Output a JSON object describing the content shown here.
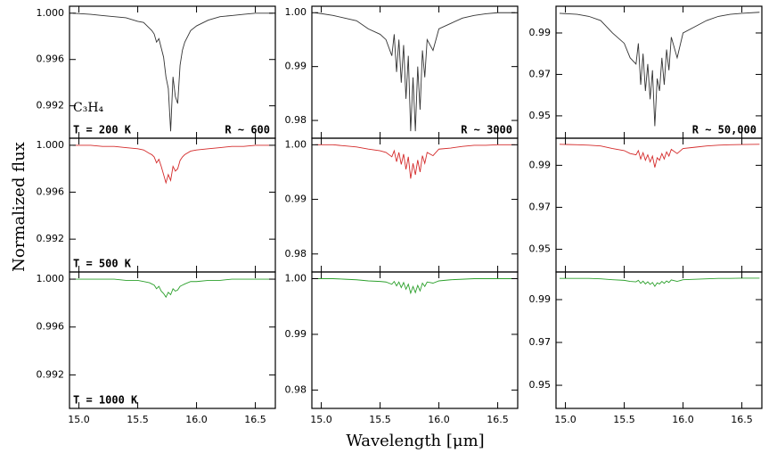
{
  "ylabel": "Normalized flux",
  "xlabel": "Wavelength [μm]",
  "chart_data": [
    {
      "type": "line",
      "species": "C₃H₄",
      "label": "T = 200 K",
      "resolution": "R ~ 600",
      "color": "#333333",
      "xlim": [
        14.92,
        16.67
      ],
      "xticks": [
        {
          "value": 15,
          "label": "15.0"
        },
        15.5,
        {
          "value": 16,
          "label": "16.0"
        },
        16.5
      ],
      "ylim": [
        0.9892,
        1.0006
      ],
      "yticks": [
        {
          "value": 1,
          "label": "1.000"
        },
        0.996,
        0.992
      ],
      "x": [
        14.95,
        15.1,
        15.2,
        15.3,
        15.4,
        15.5,
        15.55,
        15.6,
        15.62,
        15.64,
        15.66,
        15.68,
        15.7,
        15.72,
        15.74,
        15.76,
        15.78,
        15.8,
        15.82,
        15.84,
        15.86,
        15.88,
        15.9,
        15.95,
        16.0,
        16.1,
        16.2,
        16.3,
        16.4,
        16.5,
        16.65
      ],
      "values": [
        1.0,
        0.9999,
        0.9998,
        0.9997,
        0.9996,
        0.9993,
        0.9992,
        0.9987,
        0.9985,
        0.9982,
        0.9975,
        0.9978,
        0.997,
        0.9962,
        0.9945,
        0.9935,
        0.9898,
        0.9945,
        0.9928,
        0.9922,
        0.9955,
        0.9968,
        0.9975,
        0.9985,
        0.9989,
        0.9994,
        0.9997,
        0.9998,
        0.9999,
        1.0,
        1.0
      ]
    },
    {
      "type": "line",
      "resolution": "R ~ 3000",
      "color": "#333333",
      "xlim": [
        14.92,
        16.67
      ],
      "xticks": [
        {
          "value": 15,
          "label": "15.0"
        },
        15.5,
        {
          "value": 16,
          "label": "16.0"
        },
        16.5
      ],
      "ylim": [
        0.9767,
        1.0012
      ],
      "yticks": [
        {
          "value": 1,
          "label": "1.00"
        },
        0.99,
        0.98
      ],
      "x": [
        14.95,
        15.1,
        15.2,
        15.3,
        15.4,
        15.5,
        15.55,
        15.6,
        15.62,
        15.64,
        15.66,
        15.68,
        15.7,
        15.72,
        15.74,
        15.76,
        15.78,
        15.8,
        15.82,
        15.84,
        15.86,
        15.88,
        15.9,
        15.95,
        16.0,
        16.1,
        16.2,
        16.3,
        16.4,
        16.5,
        16.65
      ],
      "values": [
        1.0,
        0.9995,
        0.999,
        0.9985,
        0.997,
        0.996,
        0.995,
        0.992,
        0.996,
        0.989,
        0.995,
        0.987,
        0.994,
        0.984,
        0.992,
        0.978,
        0.988,
        0.978,
        0.99,
        0.982,
        0.993,
        0.988,
        0.995,
        0.993,
        0.997,
        0.998,
        0.999,
        0.9995,
        0.9998,
        1.0,
        1.0
      ]
    },
    {
      "type": "line",
      "resolution": "R ~ 50,000",
      "color": "#333333",
      "xlim": [
        14.92,
        16.67
      ],
      "xticks": [
        {
          "value": 15,
          "label": "15.0"
        },
        15.5,
        {
          "value": 16,
          "label": "16.0"
        },
        16.5
      ],
      "ylim": [
        0.9392,
        1.0029
      ],
      "yticks": [
        0.99,
        0.97,
        0.95
      ],
      "x": [
        14.95,
        15.1,
        15.2,
        15.3,
        15.4,
        15.5,
        15.55,
        15.6,
        15.62,
        15.64,
        15.66,
        15.68,
        15.7,
        15.72,
        15.74,
        15.76,
        15.78,
        15.8,
        15.82,
        15.84,
        15.86,
        15.88,
        15.9,
        15.95,
        16.0,
        16.1,
        16.2,
        16.3,
        16.4,
        16.5,
        16.65
      ],
      "values": [
        0.9995,
        0.999,
        0.998,
        0.996,
        0.99,
        0.985,
        0.978,
        0.975,
        0.985,
        0.965,
        0.98,
        0.962,
        0.975,
        0.958,
        0.972,
        0.945,
        0.968,
        0.962,
        0.978,
        0.965,
        0.982,
        0.972,
        0.988,
        0.978,
        0.99,
        0.993,
        0.996,
        0.998,
        0.999,
        0.9995,
        1.0
      ]
    },
    {
      "type": "line",
      "label": "T = 500 K",
      "color": "#d42a2a",
      "xlim": [
        14.92,
        16.67
      ],
      "xticks": [
        {
          "value": 15,
          "label": "15.0"
        },
        15.5,
        {
          "value": 16,
          "label": "16.0"
        },
        16.5
      ],
      "ylim": [
        0.9892,
        1.0006
      ],
      "yticks": [
        {
          "value": 1,
          "label": "1.000"
        },
        0.996,
        0.992
      ],
      "x": [
        14.95,
        15.1,
        15.2,
        15.3,
        15.4,
        15.5,
        15.55,
        15.6,
        15.62,
        15.64,
        15.66,
        15.68,
        15.7,
        15.72,
        15.74,
        15.76,
        15.78,
        15.8,
        15.82,
        15.84,
        15.86,
        15.88,
        15.9,
        15.95,
        16.0,
        16.1,
        16.2,
        16.3,
        16.4,
        16.5,
        16.65
      ],
      "values": [
        1.0,
        1.0,
        0.9999,
        0.9999,
        0.9998,
        0.9997,
        0.9996,
        0.9993,
        0.9992,
        0.999,
        0.9985,
        0.9988,
        0.9982,
        0.9975,
        0.9968,
        0.9975,
        0.997,
        0.9982,
        0.9978,
        0.998,
        0.9987,
        0.999,
        0.9992,
        0.9995,
        0.9996,
        0.9997,
        0.9998,
        0.9999,
        0.9999,
        1.0,
        1.0
      ]
    },
    {
      "type": "line",
      "color": "#d42a2a",
      "xlim": [
        14.92,
        16.67
      ],
      "xticks": [
        {
          "value": 15,
          "label": "15.0"
        },
        15.5,
        {
          "value": 16,
          "label": "16.0"
        },
        16.5
      ],
      "ylim": [
        0.9767,
        1.0012
      ],
      "yticks": [
        {
          "value": 1,
          "label": "1.00"
        },
        0.99,
        0.98
      ],
      "x": [
        14.95,
        15.1,
        15.2,
        15.3,
        15.4,
        15.5,
        15.55,
        15.6,
        15.62,
        15.64,
        15.66,
        15.68,
        15.7,
        15.72,
        15.74,
        15.76,
        15.78,
        15.8,
        15.82,
        15.84,
        15.86,
        15.88,
        15.9,
        15.95,
        16.0,
        16.1,
        16.2,
        16.3,
        16.4,
        16.5,
        16.65
      ],
      "values": [
        1.0,
        1.0,
        0.9998,
        0.9996,
        0.9992,
        0.9989,
        0.9986,
        0.9978,
        0.9989,
        0.9969,
        0.9986,
        0.9964,
        0.9983,
        0.9955,
        0.9978,
        0.9938,
        0.9966,
        0.9945,
        0.9972,
        0.995,
        0.998,
        0.9966,
        0.9986,
        0.998,
        0.9992,
        0.9994,
        0.9997,
        0.9999,
        0.9999,
        1.0,
        1.0
      ]
    },
    {
      "type": "line",
      "color": "#d42a2a",
      "xlim": [
        14.92,
        16.67
      ],
      "xticks": [
        {
          "value": 15,
          "label": "15.0"
        },
        15.5,
        {
          "value": 16,
          "label": "16.0"
        },
        16.5
      ],
      "ylim": [
        0.9392,
        1.0029
      ],
      "yticks": [
        0.99,
        0.97,
        0.95
      ],
      "x": [
        14.95,
        15.1,
        15.2,
        15.3,
        15.4,
        15.5,
        15.55,
        15.6,
        15.62,
        15.64,
        15.66,
        15.68,
        15.7,
        15.72,
        15.74,
        15.76,
        15.78,
        15.8,
        15.82,
        15.84,
        15.86,
        15.88,
        15.9,
        15.95,
        16.0,
        16.1,
        16.2,
        16.3,
        16.4,
        16.5,
        16.65
      ],
      "values": [
        1.0,
        0.9998,
        0.9996,
        0.9992,
        0.998,
        0.997,
        0.9956,
        0.995,
        0.997,
        0.993,
        0.996,
        0.9924,
        0.995,
        0.9916,
        0.9944,
        0.989,
        0.9936,
        0.9924,
        0.9956,
        0.993,
        0.9964,
        0.9944,
        0.9976,
        0.9956,
        0.998,
        0.9986,
        0.9992,
        0.9996,
        0.9998,
        0.9999,
        1.0
      ]
    },
    {
      "type": "line",
      "label": "T = 1000 K",
      "color": "#2ca02c",
      "xlim": [
        14.92,
        16.67
      ],
      "xticks": [
        {
          "value": 15,
          "label": "15.0"
        },
        15.5,
        {
          "value": 16,
          "label": "16.0"
        },
        16.5
      ],
      "ylim": [
        0.9892,
        1.0006
      ],
      "yticks": [
        {
          "value": 1,
          "label": "1.000"
        },
        0.996,
        0.992
      ],
      "x": [
        14.95,
        15.1,
        15.2,
        15.3,
        15.4,
        15.5,
        15.55,
        15.6,
        15.62,
        15.64,
        15.66,
        15.68,
        15.7,
        15.72,
        15.74,
        15.76,
        15.78,
        15.8,
        15.82,
        15.84,
        15.86,
        15.88,
        15.9,
        15.95,
        16.0,
        16.1,
        16.2,
        16.3,
        16.4,
        16.5,
        16.65
      ],
      "values": [
        1.0,
        1.0,
        1.0,
        1.0,
        0.9999,
        0.9999,
        0.9998,
        0.9997,
        0.9996,
        0.9995,
        0.9992,
        0.9994,
        0.999,
        0.9988,
        0.9985,
        0.9989,
        0.9987,
        0.9992,
        0.999,
        0.9991,
        0.9994,
        0.9995,
        0.9996,
        0.9998,
        0.9998,
        0.9999,
        0.9999,
        1.0,
        1.0,
        1.0,
        1.0
      ]
    },
    {
      "type": "line",
      "color": "#2ca02c",
      "xlim": [
        14.92,
        16.67
      ],
      "xticks": [
        {
          "value": 15,
          "label": "15.0"
        },
        15.5,
        {
          "value": 16,
          "label": "16.0"
        },
        16.5
      ],
      "ylim": [
        0.9767,
        1.0012
      ],
      "yticks": [
        {
          "value": 1,
          "label": "1.00"
        },
        0.99,
        0.98
      ],
      "x": [
        14.95,
        15.1,
        15.2,
        15.3,
        15.4,
        15.5,
        15.55,
        15.6,
        15.62,
        15.64,
        15.66,
        15.68,
        15.7,
        15.72,
        15.74,
        15.76,
        15.78,
        15.8,
        15.82,
        15.84,
        15.86,
        15.88,
        15.9,
        15.95,
        16.0,
        16.1,
        16.2,
        16.3,
        16.4,
        16.5,
        16.65
      ],
      "values": [
        1.0,
        1.0,
        0.9999,
        0.9998,
        0.9996,
        0.9995,
        0.9994,
        0.999,
        0.9995,
        0.9987,
        0.9994,
        0.9984,
        0.9993,
        0.9981,
        0.999,
        0.9974,
        0.9986,
        0.9975,
        0.9988,
        0.9978,
        0.9992,
        0.9986,
        0.9994,
        0.9992,
        0.9996,
        0.9998,
        0.9999,
        1.0,
        1.0,
        1.0,
        1.0
      ]
    },
    {
      "type": "line",
      "color": "#2ca02c",
      "xlim": [
        14.92,
        16.67
      ],
      "xticks": [
        {
          "value": 15,
          "label": "15.0"
        },
        15.5,
        {
          "value": 16,
          "label": "16.0"
        },
        16.5
      ],
      "ylim": [
        0.9392,
        1.0029
      ],
      "yticks": [
        0.99,
        0.97,
        0.95
      ],
      "x": [
        14.95,
        15.1,
        15.2,
        15.3,
        15.4,
        15.5,
        15.55,
        15.6,
        15.62,
        15.64,
        15.66,
        15.68,
        15.7,
        15.72,
        15.74,
        15.76,
        15.78,
        15.8,
        15.82,
        15.84,
        15.86,
        15.88,
        15.9,
        15.95,
        16.0,
        16.1,
        16.2,
        16.3,
        16.4,
        16.5,
        16.65
      ],
      "values": [
        0.9999,
        0.9999,
        0.9999,
        0.9997,
        0.9993,
        0.999,
        0.9985,
        0.9983,
        0.999,
        0.9976,
        0.9986,
        0.9973,
        0.9983,
        0.9971,
        0.998,
        0.9962,
        0.9978,
        0.9973,
        0.9985,
        0.9976,
        0.9987,
        0.998,
        0.9992,
        0.9985,
        0.9993,
        0.9995,
        0.9997,
        0.9999,
        0.9999,
        1.0,
        1.0
      ]
    }
  ]
}
